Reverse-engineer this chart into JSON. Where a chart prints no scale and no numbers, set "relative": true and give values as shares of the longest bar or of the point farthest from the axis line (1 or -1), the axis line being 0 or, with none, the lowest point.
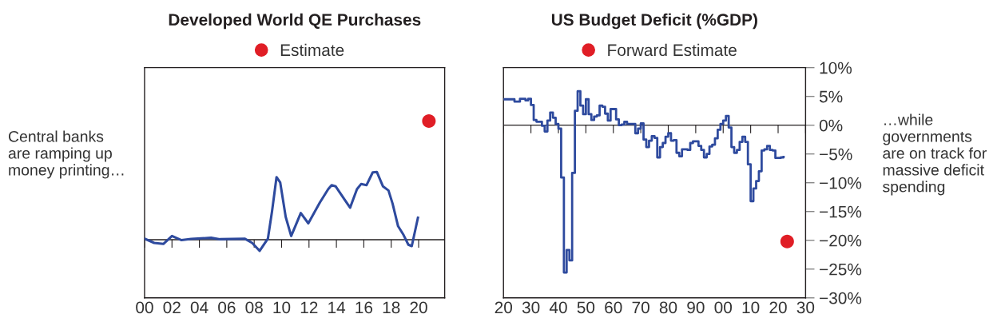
{
  "chart_data": [
    {
      "type": "line",
      "title": "Developed World QE Purchases",
      "relative": true,
      "legend": "top",
      "marker": "none",
      "line_style": "solid",
      "grid": false,
      "xlim": [
        2000,
        2021.9
      ],
      "xticks": [
        {
          "value": 2000,
          "label": "00"
        },
        {
          "value": 2002,
          "label": "02"
        },
        {
          "value": 2004,
          "label": "04"
        },
        {
          "value": 2006,
          "label": "06"
        },
        {
          "value": 2008,
          "label": "08"
        },
        {
          "value": 2010,
          "label": "10"
        },
        {
          "value": 2012,
          "label": "12"
        },
        {
          "value": 2014,
          "label": "14"
        },
        {
          "value": 2016,
          "label": "16"
        },
        {
          "value": 2018,
          "label": "18"
        },
        {
          "value": 2020,
          "label": "20"
        }
      ],
      "tick_labels": "x",
      "ref_lines": [
        {
          "axis": "y",
          "value": 0,
          "color": "#231f20"
        }
      ],
      "annotations": [
        "Central banks\nare ramping up\nmoney printing…"
      ],
      "series": [
        {
          "color": "#2e4a9e",
          "x": [
            2000,
            2000.7,
            2001.37,
            2002,
            2002.7,
            2003.4,
            2004.85,
            2005.5,
            2007.3,
            2007.85,
            2008.4,
            2009.0,
            2009.3,
            2009.63,
            2009.9,
            2010.3,
            2010.7,
            2011.0,
            2011.4,
            2011.95,
            2012.8,
            2013.4,
            2013.65,
            2013.95,
            2014.6,
            2015.0,
            2015.5,
            2015.8,
            2016.2,
            2016.65,
            2016.95,
            2017.4,
            2017.8,
            2018.1,
            2018.5,
            2018.9,
            2019.25,
            2019.5,
            2019.95
          ],
          "values": [
            0.009,
            -0.027,
            -0.036,
            0.031,
            -0.004,
            0.007,
            0.016,
            0.004,
            0.009,
            -0.027,
            -0.094,
            0.009,
            0.237,
            0.527,
            0.482,
            0.192,
            0.031,
            0.114,
            0.225,
            0.138,
            0.315,
            0.426,
            0.46,
            0.449,
            0.337,
            0.27,
            0.426,
            0.469,
            0.46,
            0.567,
            0.571,
            0.449,
            0.415,
            0.304,
            0.114,
            0.04,
            -0.042,
            -0.054,
            0.185
          ]
        },
        {
          "type": "scatter",
          "name": "Estimate",
          "color": "#e01e26",
          "marker": "circle",
          "x": [
            2020.75
          ],
          "values": [
            1.0
          ]
        }
      ]
    },
    {
      "type": "step",
      "title": "US Budget Deficit (%GDP)",
      "legend": "top",
      "marker": "none",
      "line_style": "solid",
      "grid": false,
      "xlim": [
        1920,
        2030
      ],
      "xticks": [
        {
          "value": 1920,
          "label": "20"
        },
        {
          "value": 1930,
          "label": "30"
        },
        {
          "value": 1940,
          "label": "40"
        },
        {
          "value": 1950,
          "label": "50"
        },
        {
          "value": 1960,
          "label": "60"
        },
        {
          "value": 1970,
          "label": "70"
        },
        {
          "value": 1980,
          "label": "80"
        },
        {
          "value": 1990,
          "label": "90"
        },
        {
          "value": 2000,
          "label": "00"
        },
        {
          "value": 2010,
          "label": "10"
        },
        {
          "value": 2020,
          "label": "20"
        },
        {
          "value": 2030,
          "label": "30"
        }
      ],
      "ylim": [
        -30,
        10
      ],
      "yticks": [
        {
          "value": 10,
          "label": "10%"
        },
        {
          "value": 5,
          "label": "5%"
        },
        {
          "value": 0,
          "label": "0%"
        },
        {
          "value": -5,
          "label": "−5%"
        },
        {
          "value": -10,
          "label": "−10%"
        },
        {
          "value": -15,
          "label": "−15%"
        },
        {
          "value": -20,
          "label": "−20%"
        },
        {
          "value": -25,
          "label": "−25%"
        },
        {
          "value": -30,
          "label": "−30%"
        }
      ],
      "ref_lines": [
        {
          "axis": "y",
          "value": 0,
          "color": "#231f20"
        }
      ],
      "annotations": [
        "…while\ngovernments\nare on track for\nmassive deficit\nspending"
      ],
      "series": [
        {
          "color": "#2e4a9e",
          "x": [
            1920,
            1924,
            1926,
            1928,
            1929,
            1930,
            1931,
            1932,
            1934,
            1935,
            1936,
            1937,
            1938,
            1939,
            1940,
            1941,
            1942,
            1943,
            1944,
            1945,
            1946,
            1947,
            1948,
            1949,
            1950,
            1951,
            1952,
            1953,
            1954,
            1955,
            1956,
            1957,
            1958,
            1959,
            1960,
            1961,
            1962,
            1963,
            1964,
            1965,
            1966,
            1967,
            1968,
            1969,
            1970,
            1971,
            1972,
            1973,
            1974,
            1975,
            1976,
            1977,
            1978,
            1979,
            1980,
            1981,
            1982,
            1983,
            1984,
            1985,
            1986,
            1987,
            1988,
            1989,
            1990,
            1991,
            1992,
            1993,
            1994,
            1995,
            1996,
            1997,
            1998,
            1999,
            2000,
            2001,
            2002,
            2003,
            2004,
            2005,
            2006,
            2007,
            2008,
            2009,
            2010,
            2011,
            2012,
            2013,
            2014,
            2015,
            2016,
            2017,
            2018,
            2019,
            2020,
            2021,
            2022
          ],
          "values": [
            4.5,
            4.1,
            4.6,
            4.3,
            4.6,
            3.5,
            0.9,
            0.6,
            -0.1,
            -1.1,
            0.8,
            2.2,
            1.3,
            0.2,
            -0.6,
            -9.1,
            -25.6,
            -21.7,
            -23.5,
            -8.3,
            2.5,
            5.9,
            3.4,
            1.9,
            4.5,
            1.9,
            0.9,
            1.5,
            1.7,
            3.4,
            3.2,
            2.0,
            0.8,
            2.8,
            2.8,
            1.0,
            0,
            0.1,
            0.6,
            0.2,
            0.2,
            0.2,
            -1.4,
            -0.6,
            0.3,
            -2.5,
            -3.8,
            -2.7,
            -1.9,
            -2.2,
            -5.6,
            -3.8,
            -3.1,
            -2.0,
            -1.4,
            -2.7,
            -2.6,
            -4.8,
            -5.4,
            -4.2,
            -4.2,
            -4.3,
            -3.1,
            -2.8,
            -2.8,
            -3.6,
            -4.3,
            -5.6,
            -5.0,
            -3.7,
            -3.4,
            -2.3,
            -0.8,
            0.2,
            0.8,
            1.6,
            -0.4,
            -3.8,
            -4.8,
            -4.3,
            -2.9,
            -2.0,
            -2.9,
            -6.8,
            -13.2,
            -11.0,
            -9.7,
            -8.0,
            -4.4,
            -4.2,
            -3.6,
            -4.3,
            -4.4,
            -5.7,
            -5.7,
            -5.6,
            -5.5
          ]
        },
        {
          "type": "scatter",
          "name": "Forward Estimate",
          "color": "#e01e26",
          "marker": "circle",
          "x": [
            2023.3
          ],
          "values": [
            -20.2
          ]
        }
      ]
    }
  ]
}
